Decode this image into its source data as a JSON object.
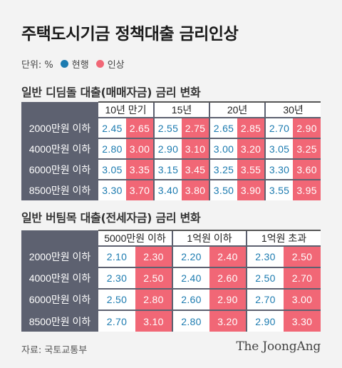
{
  "title": "주택도시기금 정책대출 금리인상",
  "legend": {
    "unit": "단위: %",
    "current_label": "현행",
    "raised_label": "인상",
    "current_color": "#1c7bb0",
    "raised_color": "#f16776"
  },
  "chart_data": [
    {
      "type": "table",
      "title": "일반 디딤돌 대출(매매자금) 금리 변화",
      "columns": [
        "10년 만기",
        "15년",
        "20년",
        "30년"
      ],
      "rows": [
        {
          "label": "2000만원 이하",
          "values": [
            [
              "2.45",
              "2.65"
            ],
            [
              "2.55",
              "2.75"
            ],
            [
              "2.65",
              "2.85"
            ],
            [
              "2.70",
              "2.90"
            ]
          ]
        },
        {
          "label": "4000만원 이하",
          "values": [
            [
              "2.80",
              "3.00"
            ],
            [
              "2.90",
              "3.10"
            ],
            [
              "3.00",
              "3.20"
            ],
            [
              "3.05",
              "3.25"
            ]
          ]
        },
        {
          "label": "6000만원 이하",
          "values": [
            [
              "3.05",
              "3.35"
            ],
            [
              "3.15",
              "3.45"
            ],
            [
              "3.25",
              "3.55"
            ],
            [
              "3.30",
              "3.60"
            ]
          ]
        },
        {
          "label": "8500만원 이하",
          "values": [
            [
              "3.30",
              "3.70"
            ],
            [
              "3.40",
              "3.80"
            ],
            [
              "3.50",
              "3.90"
            ],
            [
              "3.55",
              "3.95"
            ]
          ]
        }
      ]
    },
    {
      "type": "table",
      "title": "일반 버팀목 대출(전세자금) 금리 변화",
      "columns": [
        "5000만원 이하",
        "1억원 이하",
        "1억원 초과"
      ],
      "rows": [
        {
          "label": "2000만원 이하",
          "values": [
            [
              "2.10",
              "2.30"
            ],
            [
              "2.20",
              "2.40"
            ],
            [
              "2.30",
              "2.50"
            ]
          ]
        },
        {
          "label": "4000만원 이하",
          "values": [
            [
              "2.30",
              "2.50"
            ],
            [
              "2.40",
              "2.60"
            ],
            [
              "2.50",
              "2.70"
            ]
          ]
        },
        {
          "label": "6000만원 이하",
          "values": [
            [
              "2.50",
              "2.80"
            ],
            [
              "2.60",
              "2.90"
            ],
            [
              "2.70",
              "3.00"
            ]
          ]
        },
        {
          "label": "8500만원 이하",
          "values": [
            [
              "2.70",
              "3.10"
            ],
            [
              "2.80",
              "3.20"
            ],
            [
              "2.90",
              "3.30"
            ]
          ]
        }
      ]
    }
  ],
  "source": "자료: 국토교통부",
  "brand": "The JoongAng"
}
